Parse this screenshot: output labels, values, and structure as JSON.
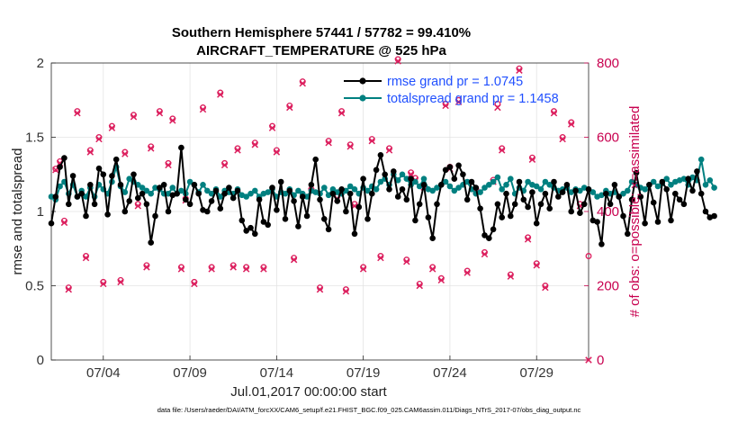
{
  "chart_data": {
    "type": "line",
    "title": "Southern Hemisphere 57441 / 57782 = 99.410%",
    "subtitle": "AIRCRAFT_TEMPERATURE @ 525 hPa",
    "xlabel": "Jul.01,2017 00:00:00 start",
    "ylabel": "rmse and totalspread",
    "ylabel_right": "# of obs: o=possible; ×=assimilated",
    "xlim": [
      1.0,
      32.0
    ],
    "ylim": [
      0,
      2
    ],
    "ylim_right": [
      0,
      800
    ],
    "x_ticks": [
      {
        "value": 4,
        "label": "07/04"
      },
      {
        "value": 9,
        "label": "07/09"
      },
      {
        "value": 14,
        "label": "07/14"
      },
      {
        "value": 19,
        "label": "07/19"
      },
      {
        "value": 24,
        "label": "07/24"
      },
      {
        "value": 29,
        "label": "07/29"
      }
    ],
    "y_ticks": [
      {
        "value": 0,
        "label": "0"
      },
      {
        "value": 0.5,
        "label": "0.5"
      },
      {
        "value": 1,
        "label": "1"
      },
      {
        "value": 1.5,
        "label": "1.5"
      },
      {
        "value": 2,
        "label": "2"
      }
    ],
    "y_ticks_right": [
      {
        "value": 0,
        "label": "0"
      },
      {
        "value": 200,
        "label": "200"
      },
      {
        "value": 400,
        "label": "400"
      },
      {
        "value": 600,
        "label": "600"
      },
      {
        "value": 800,
        "label": "800"
      }
    ],
    "grid": true,
    "legend_position": "top-right",
    "x_start": 1.0,
    "x_step": 0.25,
    "series": [
      {
        "name": "rmse",
        "legend": "rmse grand pr = 1.0745",
        "color": "#000000",
        "axis": "left",
        "values": [
          0.92,
          1.1,
          1.3,
          1.36,
          1.05,
          1.24,
          1.1,
          1.12,
          0.97,
          1.18,
          1.05,
          1.29,
          1.25,
          0.98,
          1.24,
          1.35,
          1.18,
          1.0,
          1.07,
          1.25,
          1.09,
          1.12,
          1.05,
          0.79,
          0.97,
          1.16,
          1.18,
          1.0,
          1.11,
          1.12,
          1.43,
          1.08,
          1.05,
          1.18,
          1.12,
          1.01,
          1.0,
          1.07,
          1.14,
          1.02,
          1.12,
          1.16,
          1.09,
          1.14,
          0.94,
          0.87,
          0.89,
          0.85,
          1.08,
          0.93,
          0.91,
          1.16,
          1.01,
          1.2,
          0.95,
          1.14,
          1.07,
          0.9,
          1.1,
          0.97,
          1.18,
          1.35,
          1.08,
          0.95,
          0.88,
          1.12,
          1.07,
          1.15,
          1.0,
          1.12,
          0.85,
          1.03,
          1.22,
          0.95,
          1.12,
          1.28,
          1.38,
          1.25,
          1.15,
          1.27,
          1.1,
          1.15,
          1.08,
          1.22,
          0.94,
          1.05,
          1.18,
          0.96,
          0.82,
          1.05,
          1.18,
          1.28,
          1.3,
          1.22,
          1.31,
          1.25,
          1.08,
          1.2,
          1.16,
          1.02,
          0.84,
          0.82,
          0.88,
          1.05,
          0.96,
          1.12,
          0.97,
          1.05,
          1.2,
          1.08,
          1.03,
          1.13,
          0.92,
          1.05,
          1.12,
          1.02,
          1.2,
          1.1,
          1.13,
          1.18,
          1.0,
          1.14,
          0.99,
          1.05,
          1.15,
          0.94,
          0.93,
          0.78,
          1.12,
          1.05,
          1.18,
          1.1,
          0.97,
          0.85,
          1.08,
          1.26,
          1.1,
          0.92,
          1.18,
          1.06,
          0.93,
          1.2,
          1.15,
          0.94,
          1.12,
          1.08,
          1.05,
          1.22,
          1.14,
          1.27,
          1.12,
          1.0,
          0.96,
          0.97
        ],
        "marker": "filled-circle"
      },
      {
        "name": "totalspread",
        "legend": "totalspread grand pr = 1.1458",
        "color": "#008080",
        "axis": "left",
        "values": [
          1.1,
          1.08,
          1.17,
          1.2,
          1.12,
          1.18,
          1.1,
          1.14,
          1.1,
          1.16,
          1.1,
          1.18,
          1.15,
          1.12,
          1.2,
          1.3,
          1.17,
          1.13,
          1.22,
          1.2,
          1.18,
          1.16,
          1.14,
          1.12,
          1.16,
          1.15,
          1.12,
          1.12,
          1.16,
          1.12,
          1.14,
          1.12,
          1.2,
          1.18,
          1.13,
          1.18,
          1.14,
          1.12,
          1.15,
          1.1,
          1.14,
          1.13,
          1.12,
          1.15,
          1.11,
          1.1,
          1.12,
          1.14,
          1.1,
          1.12,
          1.13,
          1.15,
          1.1,
          1.13,
          1.12,
          1.15,
          1.11,
          1.14,
          1.12,
          1.1,
          1.14,
          1.13,
          1.12,
          1.16,
          1.11,
          1.15,
          1.13,
          1.12,
          1.14,
          1.17,
          1.15,
          1.12,
          1.16,
          1.14,
          1.17,
          1.15,
          1.2,
          1.22,
          1.18,
          1.25,
          1.21,
          1.25,
          1.22,
          1.18,
          1.2,
          1.17,
          1.22,
          1.15,
          1.14,
          1.16,
          1.18,
          1.2,
          1.17,
          1.14,
          1.16,
          1.18,
          1.2,
          1.15,
          1.12,
          1.13,
          1.16,
          1.18,
          1.2,
          1.23,
          1.15,
          1.18,
          1.22,
          1.12,
          1.16,
          1.14,
          1.2,
          1.18,
          1.17,
          1.15,
          1.2,
          1.18,
          1.16,
          1.14,
          1.15,
          1.16,
          1.13,
          1.15,
          1.14,
          1.16,
          1.15,
          1.13,
          1.1,
          1.11,
          1.14,
          1.12,
          1.13,
          1.1,
          1.12,
          1.14,
          1.2,
          1.18,
          1.16,
          1.15,
          1.18,
          1.2,
          1.17,
          1.19,
          1.22,
          1.18,
          1.2,
          1.21,
          1.22,
          1.18,
          1.23,
          1.21,
          1.35,
          1.18,
          1.21,
          1.16
        ],
        "marker": "filled-circle"
      }
    ],
    "obs_possible": {
      "color": "#dc1f5e",
      "axis": "right",
      "marker": "o",
      "points": [
        [
          1.25,
          515
        ],
        [
          1.5,
          535
        ],
        [
          1.75,
          375
        ],
        [
          2.0,
          195
        ],
        [
          2.5,
          670
        ],
        [
          3.0,
          280
        ],
        [
          3.25,
          565
        ],
        [
          3.75,
          600
        ],
        [
          4.0,
          210
        ],
        [
          4.5,
          630
        ],
        [
          5.0,
          215
        ],
        [
          5.25,
          560
        ],
        [
          5.75,
          660
        ],
        [
          6.0,
          420
        ],
        [
          6.5,
          255
        ],
        [
          6.75,
          575
        ],
        [
          7.25,
          670
        ],
        [
          7.75,
          530
        ],
        [
          8.0,
          650
        ],
        [
          8.5,
          250
        ],
        [
          8.75,
          435
        ],
        [
          9.25,
          210
        ],
        [
          9.75,
          680
        ],
        [
          10.25,
          250
        ],
        [
          10.75,
          720
        ],
        [
          11.0,
          530
        ],
        [
          11.5,
          255
        ],
        [
          11.75,
          570
        ],
        [
          12.25,
          250
        ],
        [
          12.75,
          585
        ],
        [
          13.25,
          250
        ],
        [
          13.75,
          630
        ],
        [
          14.0,
          565
        ],
        [
          14.75,
          685
        ],
        [
          15.0,
          275
        ],
        [
          15.5,
          750
        ],
        [
          16.0,
          460
        ],
        [
          16.5,
          195
        ],
        [
          17.0,
          590
        ],
        [
          17.5,
          440
        ],
        [
          17.75,
          670
        ],
        [
          18.0,
          190
        ],
        [
          18.25,
          580
        ],
        [
          18.5,
          420
        ],
        [
          19.0,
          250
        ],
        [
          19.5,
          595
        ],
        [
          20.0,
          280
        ],
        [
          20.5,
          570
        ],
        [
          21.0,
          810
        ],
        [
          21.5,
          270
        ],
        [
          21.75,
          505
        ],
        [
          22.0,
          490
        ],
        [
          22.25,
          205
        ],
        [
          22.5,
          470
        ],
        [
          23.0,
          250
        ],
        [
          23.5,
          220
        ],
        [
          23.75,
          690
        ],
        [
          24.0,
          520
        ],
        [
          24.5,
          700
        ],
        [
          25.0,
          240
        ],
        [
          25.5,
          460
        ],
        [
          26.0,
          290
        ],
        [
          26.5,
          485
        ],
        [
          26.75,
          690
        ],
        [
          27.0,
          570
        ],
        [
          27.5,
          230
        ],
        [
          28.0,
          785
        ],
        [
          28.5,
          330
        ],
        [
          28.75,
          545
        ],
        [
          29.0,
          260
        ],
        [
          29.5,
          200
        ],
        [
          30.0,
          670
        ],
        [
          30.5,
          600
        ],
        [
          31.0,
          640
        ],
        [
          31.5,
          420
        ],
        [
          32.0,
          280
        ]
      ]
    },
    "obs_assimilated": {
      "color": "#dc1f5e",
      "axis": "right",
      "marker": "x",
      "points": [
        [
          1.25,
          512
        ],
        [
          1.5,
          530
        ],
        [
          1.75,
          370
        ],
        [
          2.0,
          190
        ],
        [
          2.5,
          665
        ],
        [
          3.0,
          275
        ],
        [
          3.25,
          560
        ],
        [
          3.75,
          595
        ],
        [
          4.0,
          205
        ],
        [
          4.5,
          625
        ],
        [
          5.0,
          210
        ],
        [
          5.25,
          555
        ],
        [
          5.75,
          655
        ],
        [
          6.0,
          415
        ],
        [
          6.5,
          250
        ],
        [
          6.75,
          570
        ],
        [
          7.25,
          665
        ],
        [
          7.75,
          525
        ],
        [
          8.0,
          645
        ],
        [
          8.5,
          245
        ],
        [
          8.75,
          430
        ],
        [
          9.25,
          205
        ],
        [
          9.75,
          675
        ],
        [
          10.25,
          245
        ],
        [
          10.75,
          715
        ],
        [
          11.0,
          525
        ],
        [
          11.5,
          250
        ],
        [
          11.75,
          565
        ],
        [
          12.25,
          245
        ],
        [
          12.75,
          580
        ],
        [
          13.25,
          245
        ],
        [
          13.75,
          625
        ],
        [
          14.0,
          560
        ],
        [
          14.75,
          680
        ],
        [
          15.0,
          270
        ],
        [
          15.5,
          745
        ],
        [
          16.0,
          455
        ],
        [
          16.5,
          190
        ],
        [
          17.0,
          585
        ],
        [
          17.5,
          435
        ],
        [
          17.75,
          665
        ],
        [
          18.0,
          185
        ],
        [
          18.25,
          575
        ],
        [
          18.5,
          415
        ],
        [
          19.0,
          245
        ],
        [
          19.5,
          590
        ],
        [
          20.0,
          275
        ],
        [
          20.5,
          565
        ],
        [
          21.0,
          805
        ],
        [
          21.5,
          265
        ],
        [
          21.75,
          500
        ],
        [
          22.0,
          485
        ],
        [
          22.25,
          200
        ],
        [
          22.5,
          465
        ],
        [
          23.0,
          245
        ],
        [
          23.5,
          215
        ],
        [
          23.75,
          685
        ],
        [
          24.0,
          515
        ],
        [
          24.5,
          695
        ],
        [
          25.0,
          235
        ],
        [
          25.5,
          455
        ],
        [
          26.0,
          285
        ],
        [
          26.5,
          480
        ],
        [
          26.75,
          680
        ],
        [
          27.0,
          565
        ],
        [
          27.5,
          225
        ],
        [
          28.0,
          780
        ],
        [
          28.5,
          325
        ],
        [
          28.75,
          540
        ],
        [
          29.0,
          255
        ],
        [
          29.5,
          195
        ],
        [
          30.0,
          665
        ],
        [
          30.5,
          595
        ],
        [
          31.0,
          635
        ],
        [
          31.5,
          415
        ],
        [
          32.0,
          0
        ]
      ]
    },
    "footnote": "data file: /Users/raeder/DAI/ATM_forcXX/CAM6_setup/f.e21.FHIST_BGC.f09_025.CAM6assim.011/Diags_NTrS_2017-07/obs_diag_output.nc"
  }
}
